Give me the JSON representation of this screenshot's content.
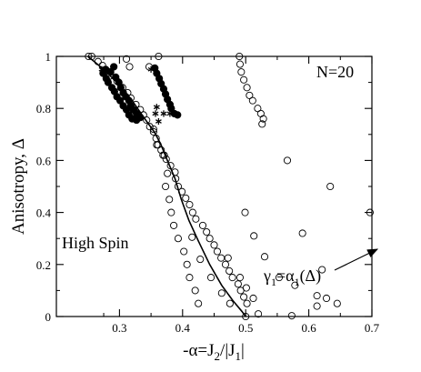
{
  "chart_data": {
    "type": "scatter",
    "title": "",
    "annotations": {
      "system_size": "N=20",
      "region_label": "High Spin",
      "curve_label_main": "γ",
      "curve_label_sub": "1",
      "curve_label_eq": "=α",
      "curve_label_eq_sub": "1",
      "curve_label_arg": "(Δ)"
    },
    "xlabel": {
      "prefix": "-α=J",
      "sub1": "2",
      "mid": "/|J",
      "sub2": "1",
      "suffix": "|"
    },
    "ylabel": "Anisotropy, Δ",
    "xlim": [
      0.2,
      0.7
    ],
    "ylim": [
      0,
      1
    ],
    "xticks": [
      0.3,
      0.4,
      0.5,
      0.6,
      0.7
    ],
    "xtick_labels": [
      "0.3",
      "0.4",
      "0.5",
      "0.6",
      "0.7"
    ],
    "yticks": [
      0,
      0.2,
      0.4,
      0.6,
      0.8,
      1
    ],
    "ytick_labels": [
      "0",
      "0.2",
      "0.4",
      "0.6",
      "0.8",
      "1"
    ],
    "grid": false,
    "series": [
      {
        "marker": "open-circle",
        "points": [
          [
            0.251,
            1.0
          ],
          [
            0.256,
            1.0
          ],
          [
            0.266,
            0.98
          ],
          [
            0.273,
            0.965
          ],
          [
            0.28,
            0.945
          ],
          [
            0.285,
            0.925
          ],
          [
            0.296,
            0.905
          ],
          [
            0.305,
            0.88
          ],
          [
            0.313,
            0.86
          ],
          [
            0.318,
            0.84
          ],
          [
            0.326,
            0.815
          ],
          [
            0.333,
            0.795
          ],
          [
            0.338,
            0.775
          ],
          [
            0.343,
            0.755
          ],
          [
            0.348,
            0.73
          ],
          [
            0.354,
            0.71
          ],
          [
            0.358,
            0.685
          ],
          [
            0.361,
            0.66
          ],
          [
            0.366,
            0.64
          ],
          [
            0.371,
            0.62
          ],
          [
            0.374,
            0.605
          ],
          [
            0.381,
            0.58
          ],
          [
            0.388,
            0.555
          ],
          [
            0.389,
            0.53
          ],
          [
            0.393,
            0.5
          ],
          [
            0.399,
            0.48
          ],
          [
            0.405,
            0.455
          ],
          [
            0.411,
            0.43
          ],
          [
            0.416,
            0.4
          ],
          [
            0.421,
            0.375
          ],
          [
            0.432,
            0.35
          ],
          [
            0.438,
            0.325
          ],
          [
            0.443,
            0.3
          ],
          [
            0.45,
            0.275
          ],
          [
            0.455,
            0.25
          ],
          [
            0.461,
            0.225
          ],
          [
            0.468,
            0.2
          ],
          [
            0.474,
            0.175
          ],
          [
            0.479,
            0.15
          ],
          [
            0.488,
            0.125
          ],
          [
            0.492,
            0.1
          ],
          [
            0.497,
            0.075
          ],
          [
            0.502,
            0.05
          ],
          [
            0.5,
            0.0
          ],
          [
            0.354,
            0.72
          ],
          [
            0.359,
            0.66
          ],
          [
            0.369,
            0.62
          ],
          [
            0.376,
            0.55
          ],
          [
            0.373,
            0.5
          ],
          [
            0.379,
            0.45
          ],
          [
            0.382,
            0.4
          ],
          [
            0.386,
            0.35
          ],
          [
            0.393,
            0.3
          ],
          [
            0.402,
            0.25
          ],
          [
            0.407,
            0.2
          ],
          [
            0.411,
            0.15
          ],
          [
            0.42,
            0.1
          ],
          [
            0.425,
            0.05
          ],
          [
            0.415,
            0.305
          ],
          [
            0.428,
            0.22
          ],
          [
            0.445,
            0.15
          ],
          [
            0.462,
            0.09
          ],
          [
            0.475,
            0.05
          ],
          [
            0.472,
            0.225
          ],
          [
            0.491,
            0.15
          ],
          [
            0.501,
            0.11
          ],
          [
            0.512,
            0.07
          ],
          [
            0.52,
            0.01
          ],
          [
            0.499,
            0.4
          ],
          [
            0.513,
            0.31
          ],
          [
            0.53,
            0.23
          ],
          [
            0.553,
            0.15
          ],
          [
            0.578,
            0.12
          ],
          [
            0.613,
            0.08
          ],
          [
            0.628,
            0.07
          ],
          [
            0.573,
            0.003
          ],
          [
            0.613,
            0.04
          ],
          [
            0.645,
            0.05
          ],
          [
            0.59,
            0.32
          ],
          [
            0.621,
            0.18
          ],
          [
            0.566,
            0.6
          ],
          [
            0.634,
            0.5
          ],
          [
            0.697,
            0.4
          ],
          [
            0.347,
            0.96
          ],
          [
            0.362,
            1.0
          ],
          [
            0.49,
            1.0
          ],
          [
            0.491,
            0.97
          ],
          [
            0.493,
            0.94
          ],
          [
            0.497,
            0.91
          ],
          [
            0.502,
            0.88
          ],
          [
            0.506,
            0.85
          ],
          [
            0.511,
            0.83
          ],
          [
            0.519,
            0.8
          ],
          [
            0.524,
            0.78
          ],
          [
            0.528,
            0.76
          ],
          [
            0.526,
            0.74
          ],
          [
            0.311,
            0.99
          ],
          [
            0.316,
            0.96
          ]
        ]
      },
      {
        "marker": "filled-circle",
        "points": [
          [
            0.274,
            0.935
          ],
          [
            0.279,
            0.915
          ],
          [
            0.282,
            0.9
          ],
          [
            0.288,
            0.88
          ],
          [
            0.292,
            0.865
          ],
          [
            0.296,
            0.845
          ],
          [
            0.301,
            0.83
          ],
          [
            0.306,
            0.81
          ],
          [
            0.311,
            0.795
          ],
          [
            0.315,
            0.775
          ],
          [
            0.32,
            0.76
          ],
          [
            0.327,
            0.755
          ],
          [
            0.294,
            0.92
          ],
          [
            0.299,
            0.9
          ],
          [
            0.302,
            0.88
          ],
          [
            0.306,
            0.86
          ],
          [
            0.31,
            0.845
          ],
          [
            0.315,
            0.83
          ],
          [
            0.318,
            0.81
          ],
          [
            0.322,
            0.795
          ],
          [
            0.327,
            0.78
          ],
          [
            0.333,
            0.765
          ],
          [
            0.286,
            0.94
          ],
          [
            0.291,
            0.96
          ],
          [
            0.278,
            0.95
          ],
          [
            0.356,
            0.955
          ],
          [
            0.359,
            0.935
          ],
          [
            0.363,
            0.915
          ],
          [
            0.366,
            0.895
          ],
          [
            0.37,
            0.875
          ],
          [
            0.373,
            0.855
          ],
          [
            0.376,
            0.835
          ],
          [
            0.38,
            0.815
          ],
          [
            0.382,
            0.8
          ],
          [
            0.387,
            0.78
          ],
          [
            0.392,
            0.775
          ]
        ]
      },
      {
        "marker": "asterisk",
        "points": [
          [
            0.272,
            0.95
          ],
          [
            0.282,
            0.945
          ],
          [
            0.35,
            0.95
          ],
          [
            0.359,
            0.805
          ],
          [
            0.357,
            0.78
          ],
          [
            0.362,
            0.75
          ],
          [
            0.37,
            0.78
          ],
          [
            0.38,
            0.78
          ],
          [
            0.387,
            0.78
          ]
        ]
      },
      {
        "marker": "line",
        "points": [
          [
            0.25,
            1.0
          ],
          [
            0.275,
            0.95
          ],
          [
            0.3,
            0.89
          ],
          [
            0.32,
            0.83
          ],
          [
            0.34,
            0.76
          ],
          [
            0.355,
            0.71
          ],
          [
            0.365,
            0.665
          ],
          [
            0.376,
            0.6
          ],
          [
            0.388,
            0.53
          ],
          [
            0.398,
            0.45
          ],
          [
            0.41,
            0.37
          ],
          [
            0.425,
            0.29
          ],
          [
            0.443,
            0.2
          ],
          [
            0.462,
            0.12
          ],
          [
            0.48,
            0.06
          ],
          [
            0.494,
            0.02
          ],
          [
            0.5,
            0.0
          ]
        ]
      }
    ]
  }
}
